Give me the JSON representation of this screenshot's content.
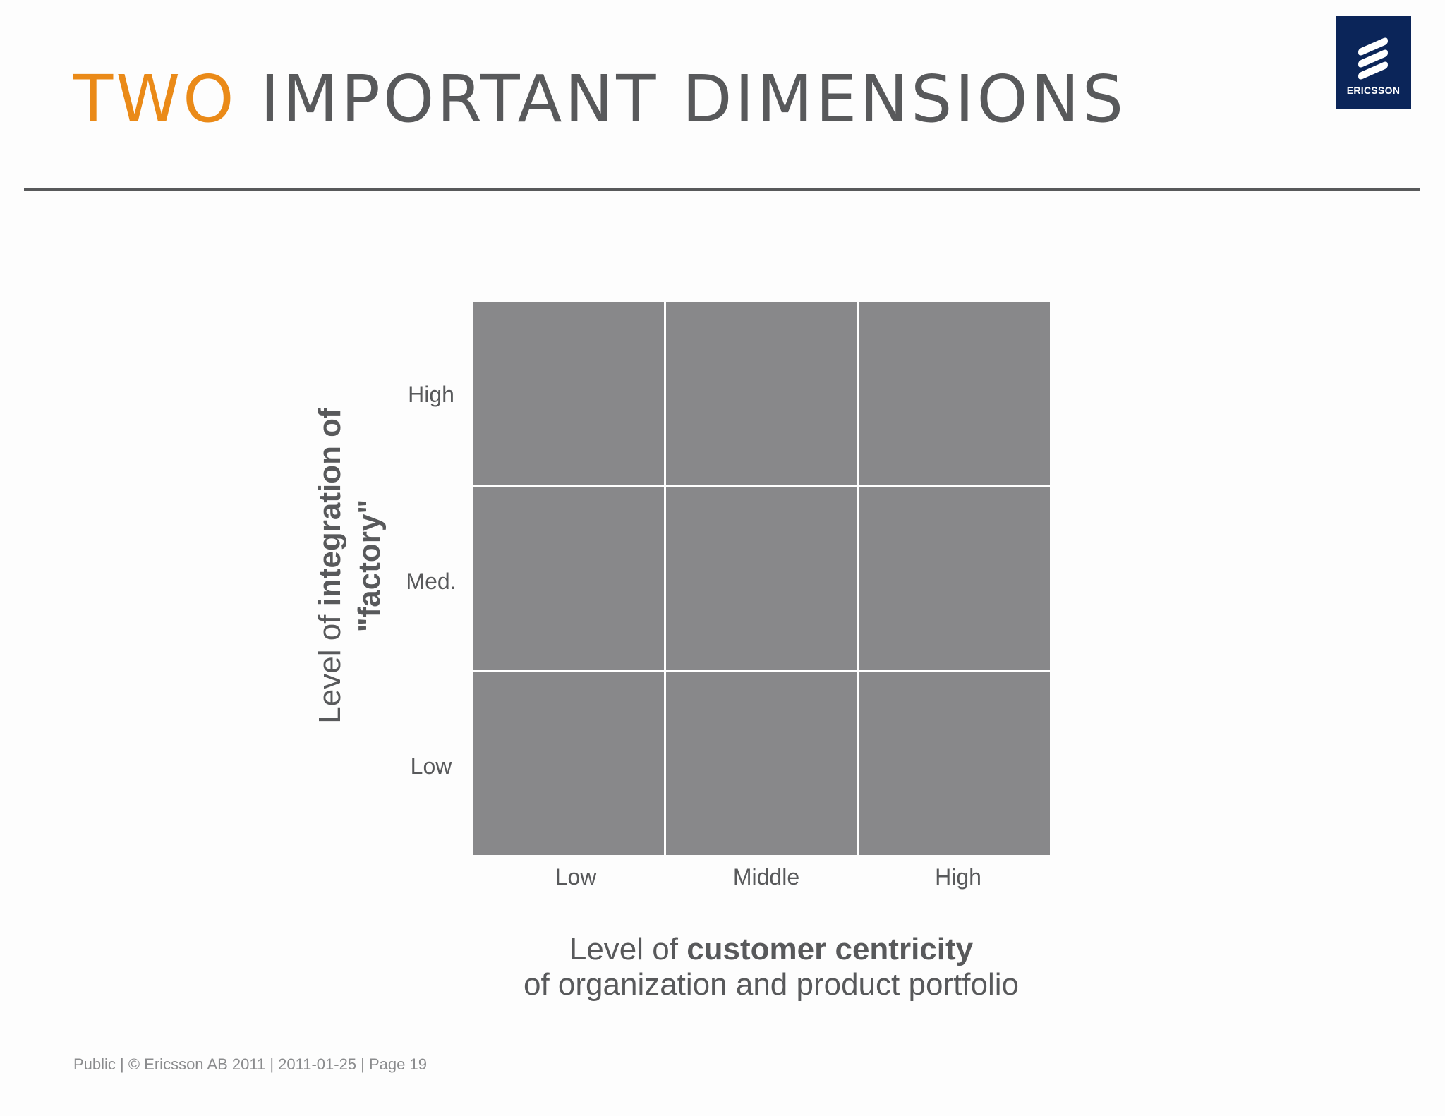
{
  "title": {
    "accent": "TWO",
    "rest": "IMPORTANT DIMENSIONS"
  },
  "logo": {
    "text": "ERICSSON",
    "icon": "ericsson-logo-icon"
  },
  "matrix": {
    "rows": 3,
    "cols": 3,
    "cell_color": "#88888a"
  },
  "y_axis": {
    "ticks": [
      "High",
      "Med.",
      "Low"
    ],
    "label_line1_plain": "Level of ",
    "label_line1_bold": "integration of",
    "label_line2_bold": "\"factory\""
  },
  "x_axis": {
    "ticks": [
      "Low",
      "Middle",
      "High"
    ],
    "label_line1_plain": "Level of ",
    "label_line1_bold": "customer centricity",
    "label_line2": "of organization and product portfolio"
  },
  "footer": {
    "text": "Public  |  © Ericsson AB 2011  |  2011-01-25  |  Page 19"
  },
  "colors": {
    "accent": "#ea8a18",
    "text": "#58595b",
    "logo_bg": "#0b2559"
  }
}
